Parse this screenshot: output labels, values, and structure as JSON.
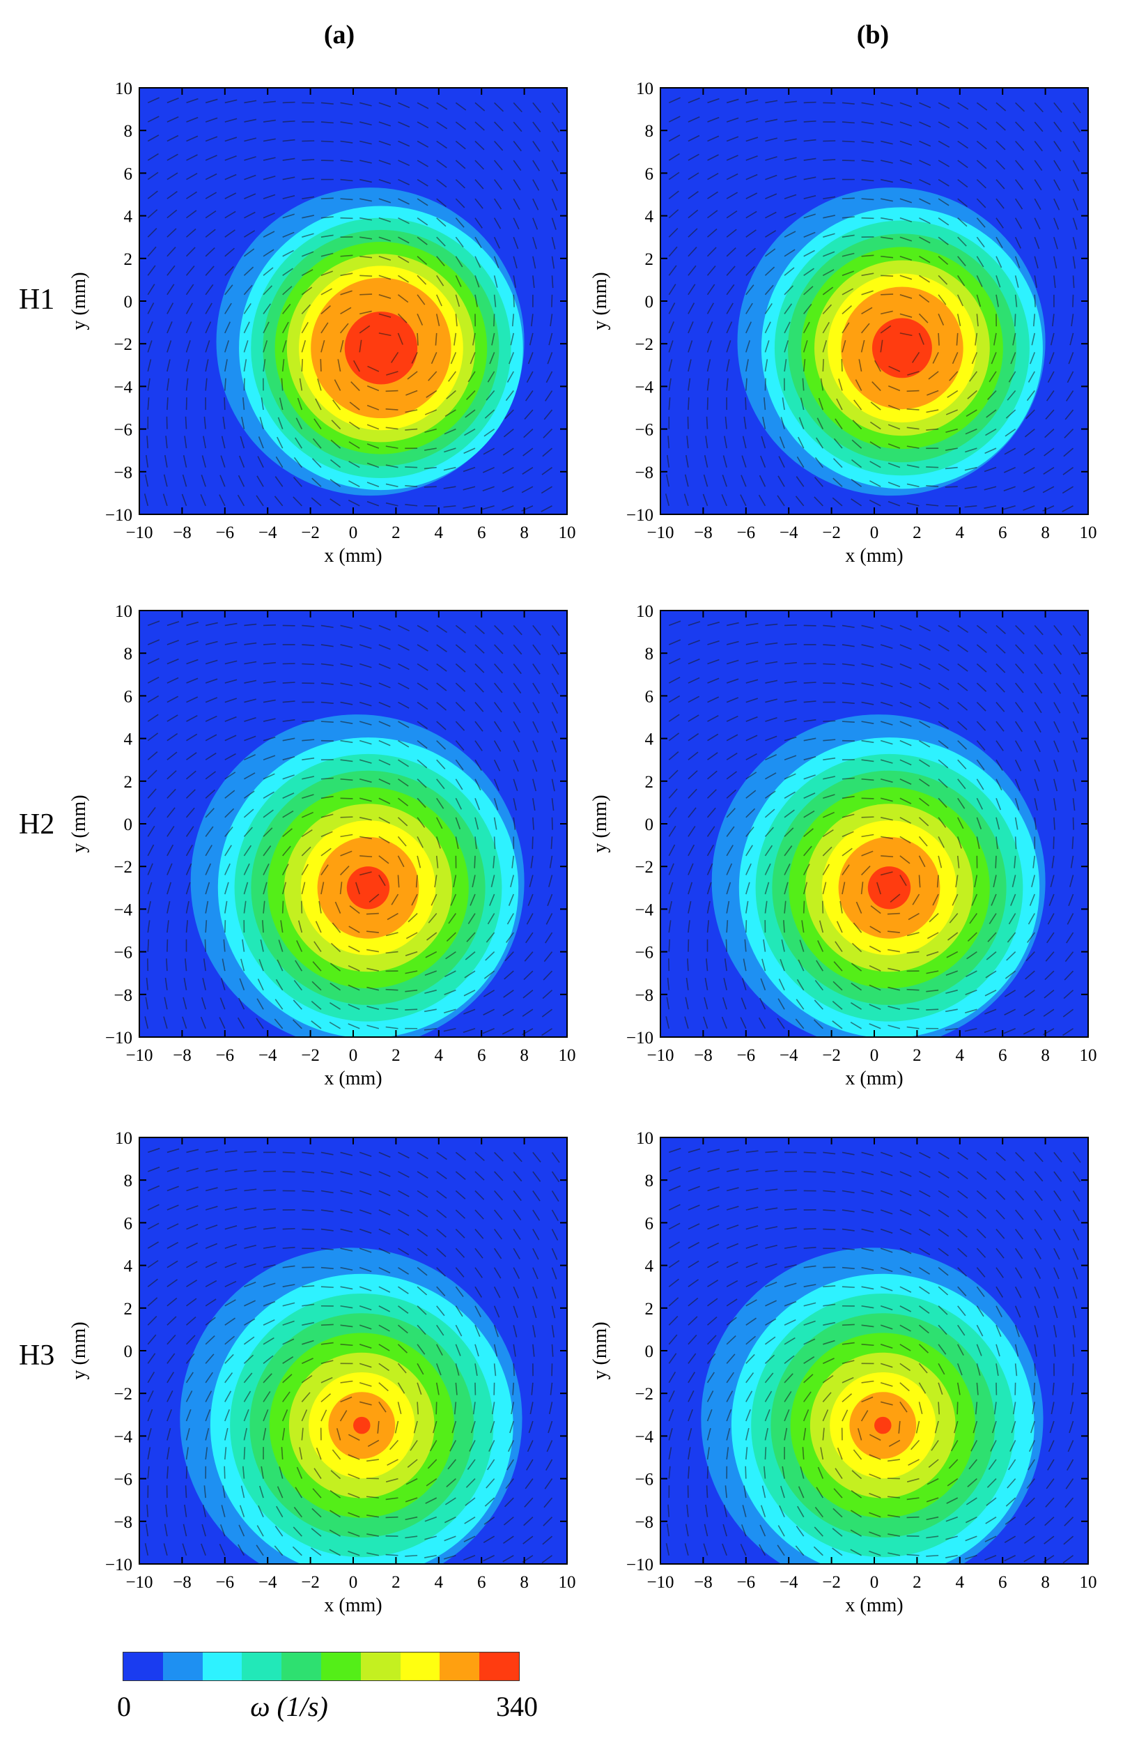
{
  "columns": [
    "(a)",
    "(b)"
  ],
  "rows": [
    "H1",
    "H2",
    "H3"
  ],
  "colorbar": {
    "colors": [
      "#1a3cf0",
      "#1e90f2",
      "#2ef2ff",
      "#22e8b8",
      "#2ee070",
      "#54ee18",
      "#c4f020",
      "#ffff10",
      "#ffa010",
      "#ff3c10"
    ],
    "min_label": "0",
    "max_label": "340",
    "title": "ω (1/s)"
  },
  "chart_data": {
    "type": "heatmap",
    "description_variable": "vorticity magnitude",
    "xlabel": "x (mm)",
    "ylabel": "y (mm)",
    "xlim": [
      -10,
      10
    ],
    "ylim": [
      -10,
      10
    ],
    "xticks": [
      -10,
      -8,
      -6,
      -4,
      -2,
      0,
      2,
      4,
      6,
      8,
      10
    ],
    "yticks": [
      -10,
      -8,
      -6,
      -4,
      -2,
      0,
      2,
      4,
      6,
      8,
      10
    ],
    "value_range": [
      0,
      340
    ],
    "background_level": 0,
    "panels": [
      {
        "row": "H1",
        "column": "(a)",
        "vortex_center": [
          1.3,
          -2.2
        ],
        "outer_radius_mm": 7.2,
        "peak_level": 9,
        "core_radius_mm": 1.7
      },
      {
        "row": "H1",
        "column": "(b)",
        "vortex_center": [
          1.3,
          -2.2
        ],
        "outer_radius_mm": 7.2,
        "peak_level": 9,
        "core_radius_mm": 1.4
      },
      {
        "row": "H2",
        "column": "(a)",
        "vortex_center": [
          0.7,
          -3.0
        ],
        "outer_radius_mm": 7.8,
        "peak_level": 9,
        "core_radius_mm": 1.0
      },
      {
        "row": "H2",
        "column": "(b)",
        "vortex_center": [
          0.7,
          -3.0
        ],
        "outer_radius_mm": 7.8,
        "peak_level": 9,
        "core_radius_mm": 1.0
      },
      {
        "row": "H3",
        "column": "(a)",
        "vortex_center": [
          0.4,
          -3.5
        ],
        "outer_radius_mm": 8.0,
        "peak_level": 9,
        "core_radius_mm": 0.4
      },
      {
        "row": "H3",
        "column": "(b)",
        "vortex_center": [
          0.4,
          -3.5
        ],
        "outer_radius_mm": 8.0,
        "peak_level": 9,
        "core_radius_mm": 0.4
      }
    ]
  }
}
